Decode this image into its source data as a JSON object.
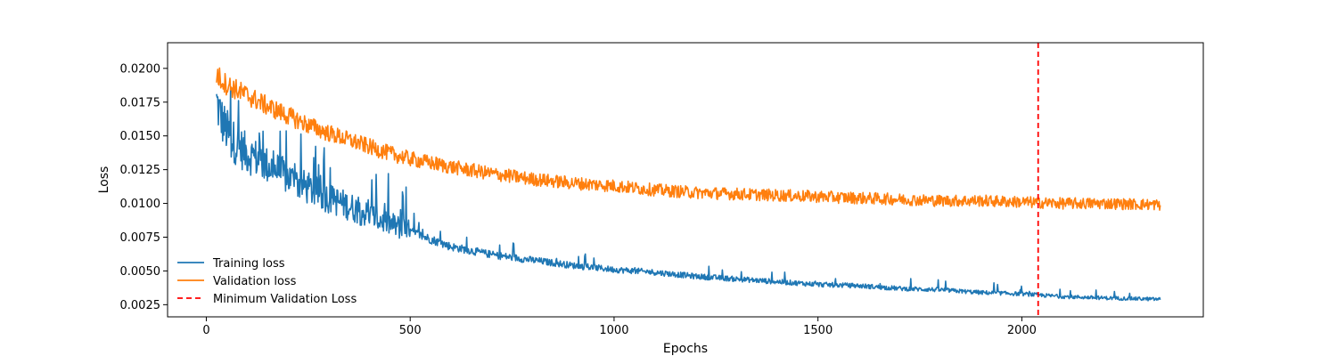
{
  "chart_data": {
    "type": "line",
    "xlabel": "Epochs",
    "ylabel": "Loss",
    "xlim": [
      -95,
      2445
    ],
    "ylim": [
      0.0016,
      0.0219
    ],
    "x_ticks": [
      0,
      500,
      1000,
      1500,
      2000
    ],
    "x_tick_labels": [
      "0",
      "500",
      "1000",
      "1500",
      "2000"
    ],
    "y_ticks": [
      0.0025,
      0.005,
      0.0075,
      0.01,
      0.0125,
      0.015,
      0.0175,
      0.02
    ],
    "y_tick_labels": [
      "0.0025",
      "0.0050",
      "0.0075",
      "0.0100",
      "0.0125",
      "0.0150",
      "0.0175",
      "0.0200"
    ],
    "grid": false,
    "legend_position": "lower-left",
    "series": [
      {
        "name": "Training loss",
        "color": "#1f77b4",
        "x": [
          25,
          40,
          60,
          80,
          100,
          125,
          150,
          175,
          200,
          250,
          300,
          350,
          400,
          450,
          500,
          600,
          700,
          800,
          900,
          1000,
          1100,
          1200,
          1300,
          1400,
          1500,
          1600,
          1700,
          1800,
          1900,
          2000,
          2100,
          2200,
          2340
        ],
        "y": [
          0.0175,
          0.016,
          0.0148,
          0.0142,
          0.0137,
          0.0133,
          0.0128,
          0.0124,
          0.0119,
          0.0111,
          0.0104,
          0.0098,
          0.0091,
          0.0085,
          0.0079,
          0.0068,
          0.0062,
          0.0058,
          0.0054,
          0.0051,
          0.0049,
          0.0046,
          0.0044,
          0.0042,
          0.004,
          0.0039,
          0.0037,
          0.0036,
          0.0034,
          0.0033,
          0.0031,
          0.003,
          0.0029
        ]
      },
      {
        "name": "Validation loss",
        "color": "#ff7f0e",
        "x": [
          25,
          50,
          100,
          150,
          200,
          250,
          300,
          350,
          400,
          450,
          500,
          600,
          700,
          800,
          900,
          1000,
          1100,
          1200,
          1300,
          1400,
          1500,
          1600,
          1700,
          1800,
          1900,
          2000,
          2100,
          2200,
          2340
        ],
        "y": [
          0.0195,
          0.0188,
          0.018,
          0.0172,
          0.0165,
          0.0158,
          0.0152,
          0.0147,
          0.0142,
          0.0137,
          0.0133,
          0.0127,
          0.0122,
          0.0118,
          0.0115,
          0.0113,
          0.011,
          0.0108,
          0.0107,
          0.0106,
          0.0105,
          0.0104,
          0.0103,
          0.0102,
          0.0102,
          0.0101,
          0.01,
          0.01,
          0.0099
        ]
      }
    ],
    "vertical_lines": [
      {
        "name": "Minimum Validation Loss",
        "x": 2040,
        "color": "#ff0000",
        "style": "dashed"
      }
    ]
  }
}
